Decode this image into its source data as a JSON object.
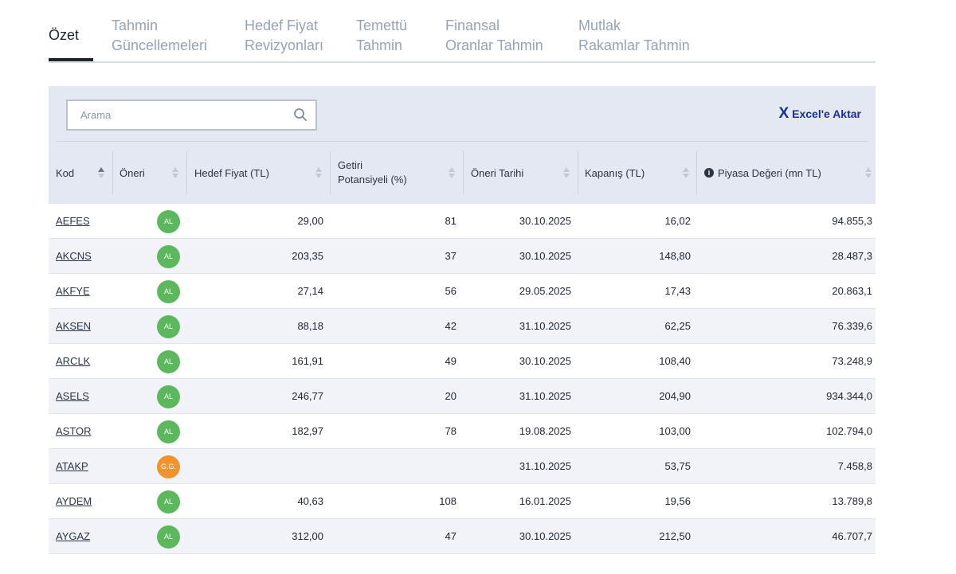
{
  "tabs": [
    {
      "line1": "Özet",
      "line2": ""
    },
    {
      "line1": "Tahmin",
      "line2": "Güncellemeleri"
    },
    {
      "line1": "Hedef Fiyat",
      "line2": "Revizyonları"
    },
    {
      "line1": "Temettü",
      "line2": "Tahmin"
    },
    {
      "line1": "Finansal",
      "line2": "Oranlar Tahmin"
    },
    {
      "line1": "Mutlak",
      "line2": "Rakamlar Tahmin"
    }
  ],
  "search": {
    "placeholder": "Arama"
  },
  "excel": {
    "icon": "X",
    "label": "Excel'e Aktar"
  },
  "columns": {
    "code": "Kod",
    "recommendation": "Öneri",
    "target_price": "Hedef Fiyat (TL)",
    "return_line1": "Getiri",
    "return_line2": "Potansiyeli (%)",
    "date": "Öneri Tarihi",
    "close": "Kapanış (TL)",
    "market_cap": "Piyasa Değeri (mn TL)"
  },
  "colors": {
    "buy": "#5cb85c",
    "hold": "#f0932b",
    "accent": "#1b2f8f"
  },
  "rows": [
    {
      "code": "AEFES",
      "rec": "AL",
      "target": "29,00",
      "ret": "81",
      "date": "30.10.2025",
      "close": "16,02",
      "cap": "94.855,3"
    },
    {
      "code": "AKCNS",
      "rec": "AL",
      "target": "203,35",
      "ret": "37",
      "date": "30.10.2025",
      "close": "148,80",
      "cap": "28.487,3"
    },
    {
      "code": "AKFYE",
      "rec": "AL",
      "target": "27,14",
      "ret": "56",
      "date": "29.05.2025",
      "close": "17,43",
      "cap": "20.863,1"
    },
    {
      "code": "AKSEN",
      "rec": "AL",
      "target": "88,18",
      "ret": "42",
      "date": "31.10.2025",
      "close": "62,25",
      "cap": "76.339,6"
    },
    {
      "code": "ARCLK",
      "rec": "AL",
      "target": "161,91",
      "ret": "49",
      "date": "30.10.2025",
      "close": "108,40",
      "cap": "73.248,9"
    },
    {
      "code": "ASELS",
      "rec": "AL",
      "target": "246,77",
      "ret": "20",
      "date": "31.10.2025",
      "close": "204,90",
      "cap": "934.344,0"
    },
    {
      "code": "ASTOR",
      "rec": "AL",
      "target": "182,97",
      "ret": "78",
      "date": "19.08.2025",
      "close": "103,00",
      "cap": "102.794,0"
    },
    {
      "code": "ATAKP",
      "rec": "G.G.",
      "target": "",
      "ret": "",
      "date": "31.10.2025",
      "close": "53,75",
      "cap": "7.458,8"
    },
    {
      "code": "AYDEM",
      "rec": "AL",
      "target": "40,63",
      "ret": "108",
      "date": "16.01.2025",
      "close": "19,56",
      "cap": "13.789,8"
    },
    {
      "code": "AYGAZ",
      "rec": "AL",
      "target": "312,00",
      "ret": "47",
      "date": "30.10.2025",
      "close": "212,50",
      "cap": "46.707,7"
    }
  ]
}
